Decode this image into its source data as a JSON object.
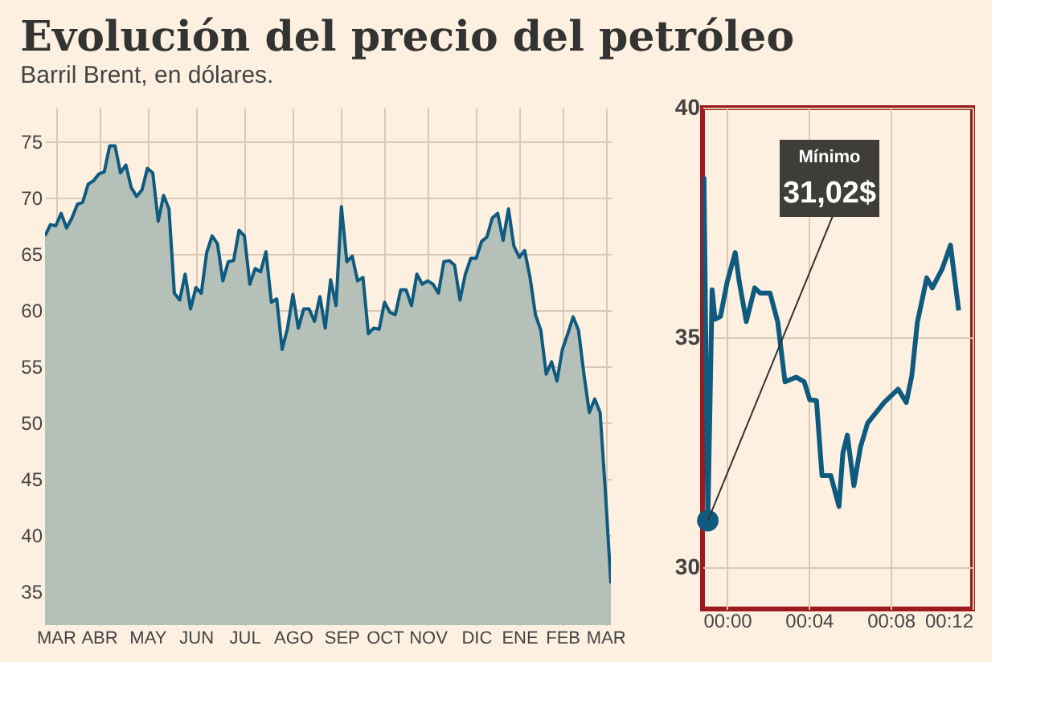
{
  "chart_data": [
    {
      "type": "area",
      "title": "Evolución del precio del petróleo",
      "subtitle": "Barril Brent, en dólares.",
      "categories": [
        null,
        null,
        "MAR",
        null,
        null,
        null,
        null,
        null,
        null,
        null,
        "ABR",
        null,
        null,
        null,
        null,
        null,
        null,
        null,
        null,
        "MAY",
        null,
        null,
        null,
        null,
        null,
        null,
        null,
        null,
        "JUN",
        null,
        null,
        null,
        null,
        null,
        null,
        null,
        null,
        "JUL",
        null,
        null,
        null,
        null,
        null,
        null,
        null,
        null,
        "AGO",
        null,
        null,
        null,
        null,
        null,
        null,
        null,
        null,
        "SEP",
        null,
        null,
        null,
        null,
        null,
        null,
        null,
        "OCT",
        null,
        null,
        null,
        null,
        null,
        null,
        null,
        "NOV",
        null,
        null,
        null,
        null,
        null,
        null,
        null,
        null,
        "DIC",
        null,
        null,
        null,
        null,
        null,
        null,
        null,
        "ENE",
        null,
        null,
        null,
        null,
        null,
        null,
        null,
        "FEB",
        null,
        null,
        null,
        null,
        null,
        null,
        null,
        "MAR",
        null
      ],
      "series": [
        {
          "color": "#0f5a7f",
          "values": [
            66.6,
            67.6,
            67.5,
            68.6,
            67.3,
            68.2,
            69.4,
            69.6,
            71.2,
            71.5,
            72.1,
            72.3,
            74.6,
            74.6,
            72.2,
            72.9,
            70.9,
            70.1,
            70.7,
            72.6,
            72.2,
            67.9,
            70.2,
            69.0,
            61.5,
            60.9,
            63.2,
            60.1,
            62.0,
            61.5,
            65.1,
            66.6,
            65.9,
            62.6,
            64.3,
            64.4,
            67.1,
            66.6,
            62.3,
            63.7,
            63.4,
            65.2,
            60.7,
            61.0,
            56.5,
            58.4,
            61.4,
            58.4,
            60.1,
            60.1,
            59.0,
            61.2,
            58.4,
            62.7,
            60.4,
            69.2,
            64.3,
            64.8,
            62.6,
            62.9,
            57.9,
            58.4,
            58.3,
            60.7,
            59.8,
            59.6,
            61.8,
            61.8,
            60.4,
            63.2,
            62.3,
            62.6,
            62.3,
            61.5,
            64.3,
            64.4,
            64.0,
            60.9,
            63.2,
            64.6,
            64.6,
            66.1,
            66.5,
            68.2,
            68.6,
            66.2,
            69.0,
            65.7,
            64.7,
            65.3,
            62.9,
            59.6,
            58.2,
            54.3,
            55.4,
            53.7,
            56.5,
            57.9,
            59.4,
            58.2,
            54.3,
            50.9,
            52.1,
            50.9,
            43.7,
            35.7
          ]
        }
      ],
      "ylim": [
        32,
        78
      ],
      "yticks": [
        35,
        40,
        45,
        50,
        55,
        60,
        65,
        70,
        75
      ],
      "grid": true
    },
    {
      "type": "line",
      "x": [
        -1.13,
        -0.94,
        -0.73,
        -0.59,
        -0.32,
        0,
        0.4,
        0.59,
        0.94,
        1.35,
        1.62,
        2.1,
        2.48,
        2.83,
        3.37,
        3.77,
        4.04,
        4.37,
        4.64,
        5.07,
        5.47,
        5.66,
        5.88,
        6.2,
        6.52,
        6.87,
        7.28,
        7.68,
        8.36,
        8.76,
        9.03,
        9.3,
        9.76,
        10.03,
        10.51,
        10.92,
        11.32
      ],
      "series": [
        {
          "color": "#0f5a7f",
          "values": [
            38.5,
            31.02,
            36.04,
            35.4,
            35.46,
            36.2,
            36.85,
            36.23,
            35.35,
            36.08,
            35.97,
            35.97,
            35.33,
            34.04,
            34.14,
            34.04,
            33.65,
            33.63,
            32.0,
            32.0,
            31.33,
            32.49,
            32.88,
            31.78,
            32.62,
            33.14,
            33.37,
            33.59,
            33.88,
            33.59,
            34.17,
            35.33,
            36.3,
            36.08,
            36.49,
            37.01,
            35.59
          ]
        }
      ],
      "annotations": [
        "Mínimo",
        "31,02$"
      ],
      "xlim": [
        -1.2,
        12
      ],
      "xticks": [
        {
          "value": 0,
          "label": "00:00"
        },
        {
          "value": 4,
          "label": "00:04"
        },
        {
          "value": 8,
          "label": "00:08"
        },
        {
          "value": 12,
          "label": "00:12"
        }
      ],
      "ylim": [
        29.1,
        40
      ],
      "yticks": [
        30,
        35,
        40
      ],
      "grid": true
    }
  ]
}
